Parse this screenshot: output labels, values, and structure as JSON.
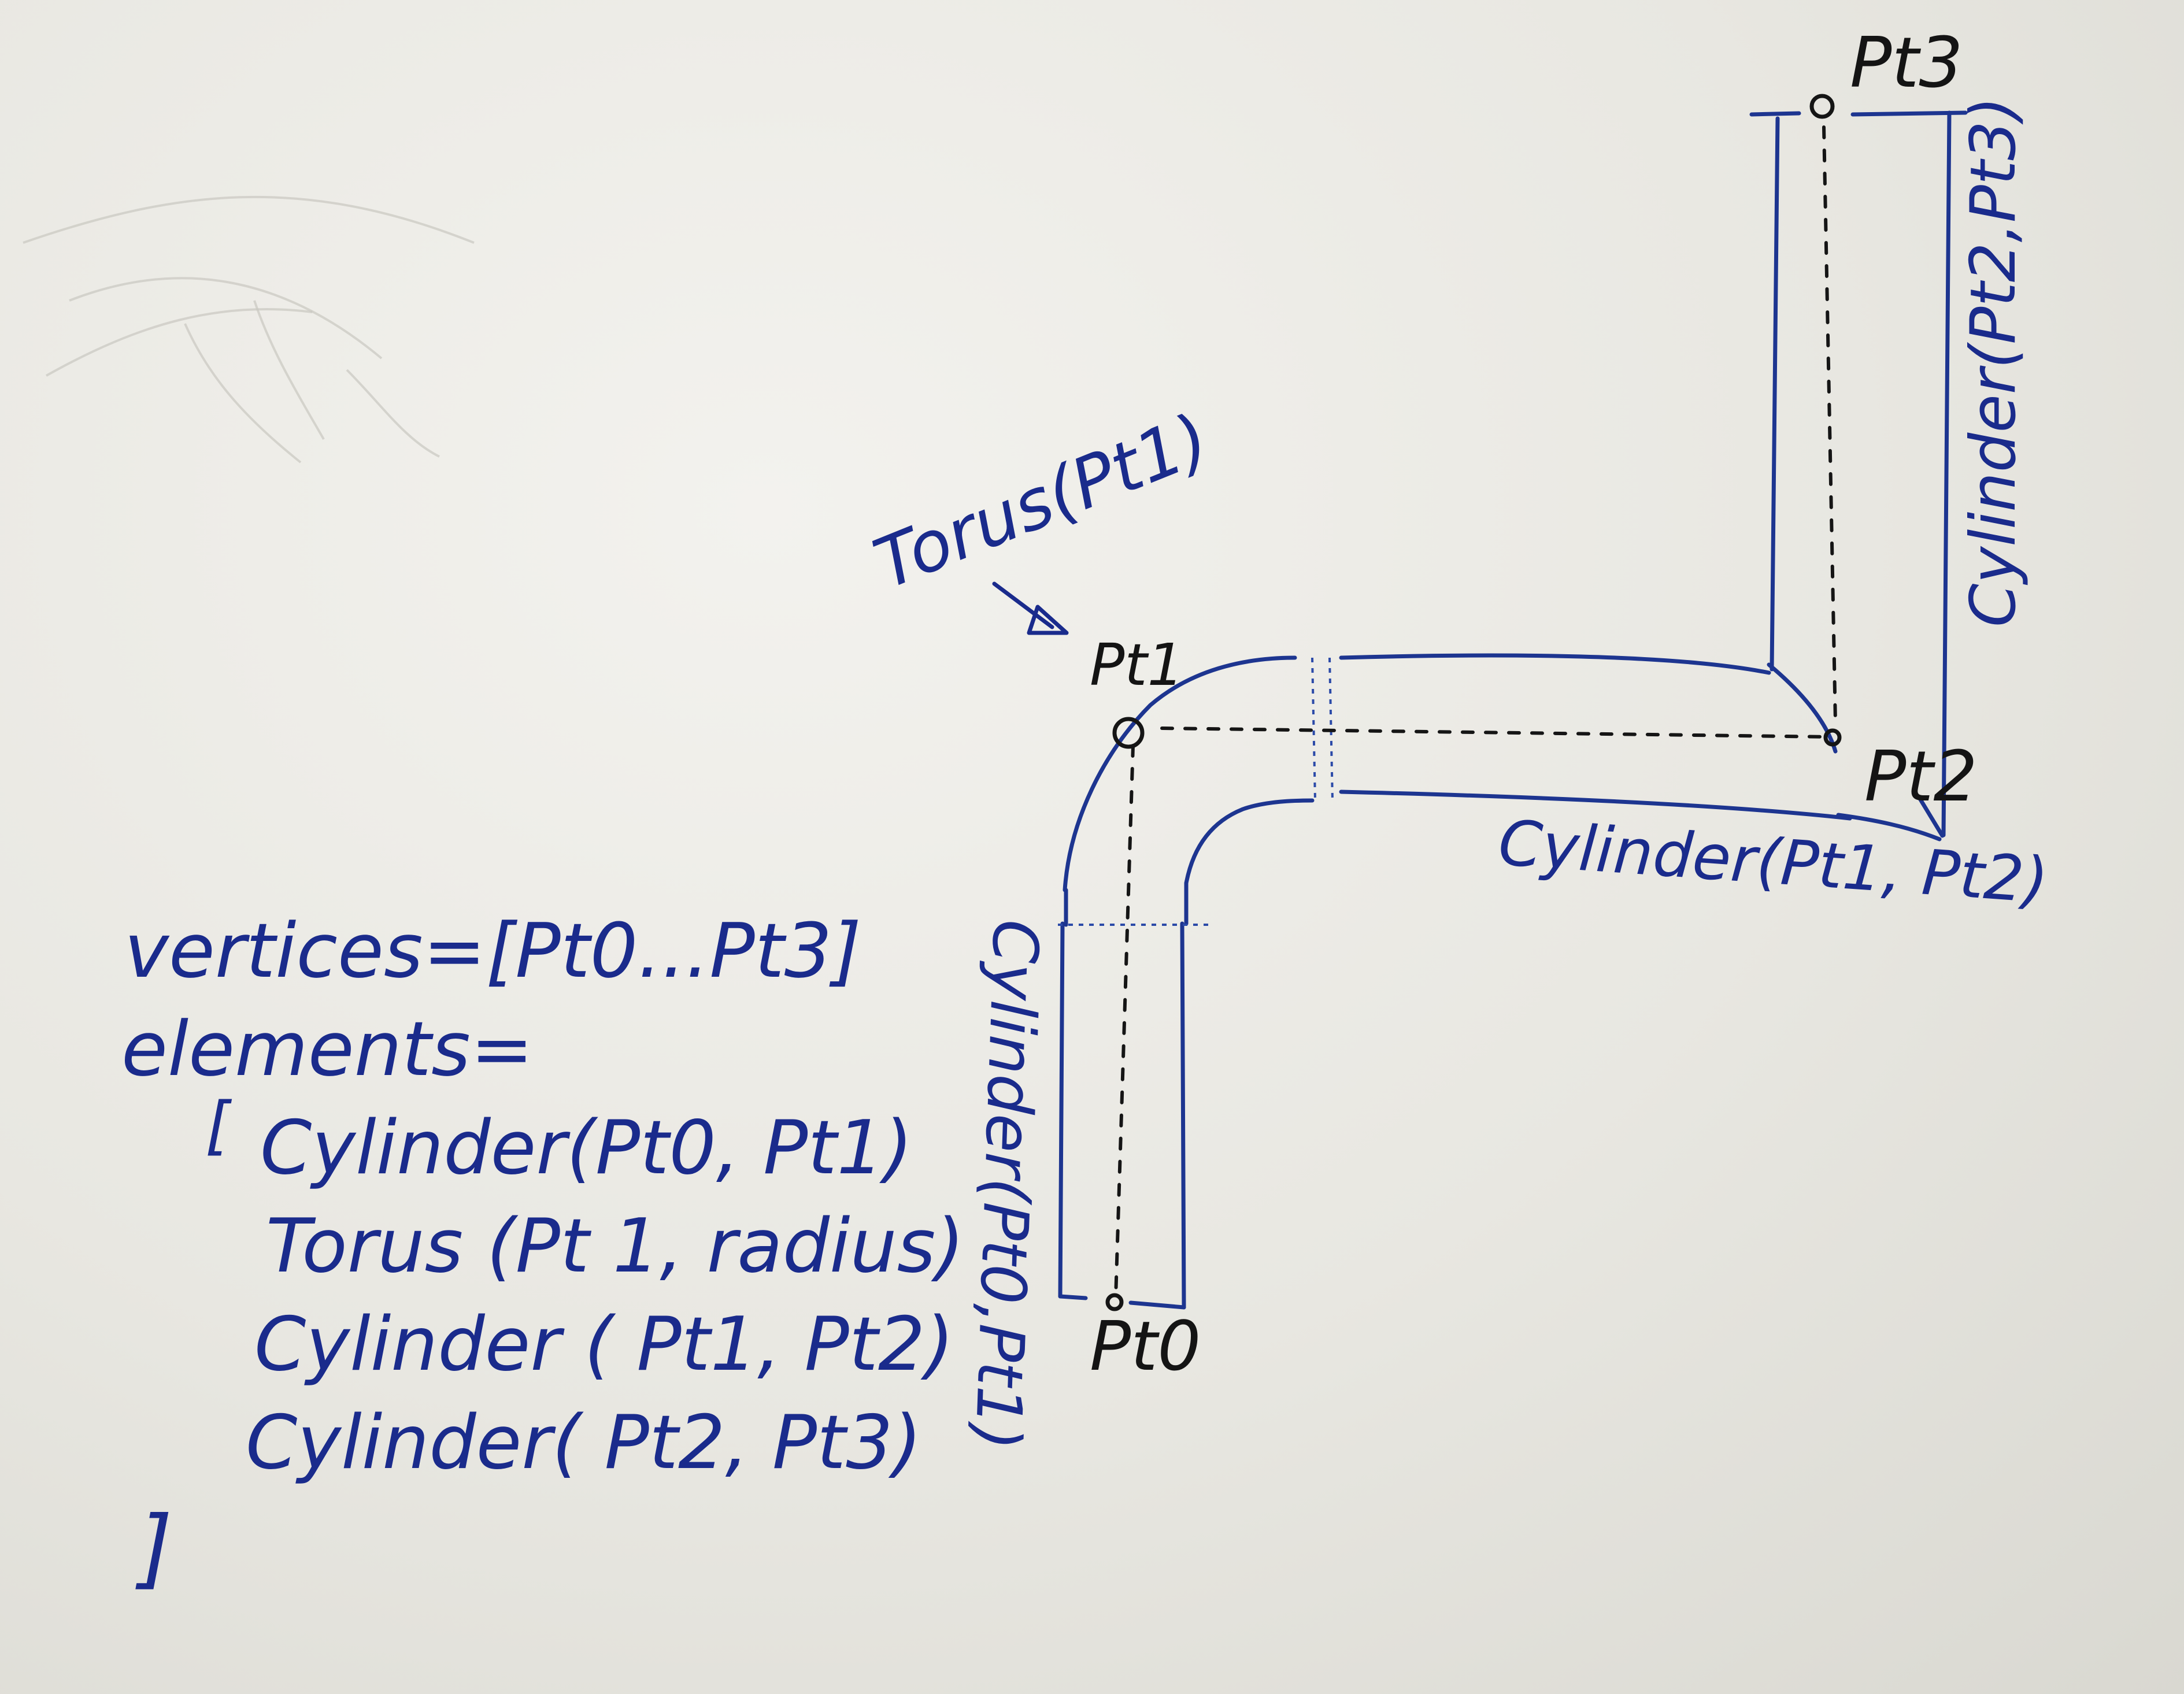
{
  "ink_colors": {
    "blue": "#1a2b8c",
    "black": "#141414"
  },
  "points": {
    "pt0": "Pt0",
    "pt1": "Pt1",
    "pt2": "Pt2",
    "pt3": "Pt3"
  },
  "labels": {
    "torus": "Torus(Pt1)",
    "cylinder_01": "Cylinder(Pt0,Pt1)",
    "cylinder_12": "Cylinder(Pt1, Pt2)",
    "cylinder_23": "Cylinder(Pt2,Pt3)"
  },
  "code": {
    "vertices_line": "vertices=[Pt0...Pt3]",
    "elements_line": "elements=",
    "open_bracket": "[",
    "items": [
      "Cylinder(Pt0, Pt1)",
      "Torus (Pt 1, radius)",
      "Cylinder ( Pt1, Pt2)",
      "Cylinder( Pt2, Pt3)"
    ],
    "close_bracket": "]"
  }
}
